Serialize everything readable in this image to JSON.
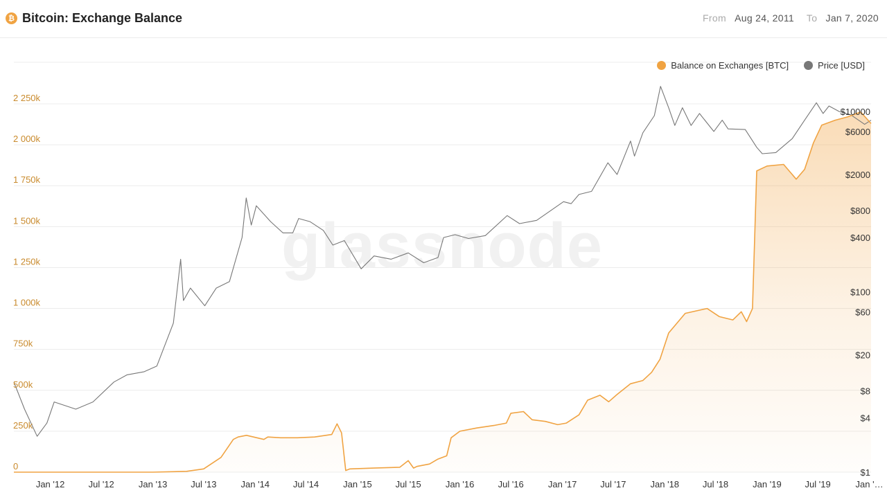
{
  "header": {
    "coin_icon": "bitcoin-icon",
    "coin_glyph": "₿",
    "title": "Bitcoin: Exchange Balance",
    "from_label": "From",
    "from_value": "Aug 24, 2011",
    "to_label": "To",
    "to_value": "Jan 7, 2020"
  },
  "watermark": "glassnode",
  "colors": {
    "balance": "#f0a342",
    "price": "#777777",
    "left_axis_text": "#c98a2c",
    "grid": "#ececec"
  },
  "chart_data": {
    "type": "area",
    "title": "Bitcoin: Exchange Balance",
    "x_range": [
      "2011-08-24",
      "2020-01-07"
    ],
    "x_tick_labels": [
      "Jan '12",
      "Jul '12",
      "Jan '13",
      "Jul '13",
      "Jan '14",
      "Jul '14",
      "Jan '15",
      "Jul '15",
      "Jan '16",
      "Jul '16",
      "Jan '17",
      "Jul '17",
      "Jan '18",
      "Jul '18",
      "Jan '19",
      "Jul '19",
      "Jan '…"
    ],
    "x_tick_dates": [
      "2012-01-01",
      "2012-07-01",
      "2013-01-01",
      "2013-07-01",
      "2014-01-01",
      "2014-07-01",
      "2015-01-01",
      "2015-07-01",
      "2016-01-01",
      "2016-07-01",
      "2017-01-01",
      "2017-07-01",
      "2018-01-01",
      "2018-07-01",
      "2019-01-01",
      "2019-07-01",
      "2020-01-01"
    ],
    "y_left": {
      "scale": "linear",
      "range": [
        0,
        2250000
      ],
      "ticks": [
        0,
        250000,
        500000,
        750000,
        1000000,
        1250000,
        1500000,
        1750000,
        2000000,
        2250000
      ],
      "tick_labels": [
        "0",
        "250k",
        "500k",
        "750k",
        "1 000k",
        "1 250k",
        "1 500k",
        "1 750k",
        "2 000k",
        "2 250k"
      ]
    },
    "y_right": {
      "scale": "log",
      "range": [
        1,
        10000
      ],
      "ticks": [
        1,
        4,
        8,
        20,
        60,
        100,
        400,
        800,
        2000,
        6000,
        10000
      ],
      "tick_labels": [
        "$1",
        "$4",
        "$8",
        "$20",
        "$60",
        "$100",
        "$400",
        "$800",
        "$2000",
        "$6000",
        "$10000"
      ]
    },
    "legend": {
      "placement": "top-right"
    },
    "grid": true,
    "series": [
      {
        "name": "Balance on Exchanges [BTC]",
        "axis": "left",
        "style": "area",
        "x": [
          "2011-08-24",
          "2012-01-01",
          "2012-07-01",
          "2013-01-01",
          "2013-05-01",
          "2013-07-01",
          "2013-09-01",
          "2013-10-15",
          "2013-11-01",
          "2013-12-01",
          "2014-02-01",
          "2014-02-15",
          "2014-04-01",
          "2014-06-01",
          "2014-08-01",
          "2014-10-01",
          "2014-10-20",
          "2014-11-05",
          "2014-11-20",
          "2014-12-05",
          "2015-03-01",
          "2015-06-01",
          "2015-07-01",
          "2015-07-20",
          "2015-08-01",
          "2015-09-15",
          "2015-10-15",
          "2015-11-15",
          "2015-12-01",
          "2016-01-01",
          "2016-03-01",
          "2016-05-01",
          "2016-06-15",
          "2016-07-01",
          "2016-08-15",
          "2016-09-15",
          "2016-11-01",
          "2016-12-15",
          "2017-01-15",
          "2017-03-01",
          "2017-04-01",
          "2017-05-15",
          "2017-06-15",
          "2017-07-15",
          "2017-09-01",
          "2017-10-15",
          "2017-11-15",
          "2017-12-15",
          "2018-01-15",
          "2018-03-15",
          "2018-06-01",
          "2018-07-15",
          "2018-09-01",
          "2018-10-01",
          "2018-10-20",
          "2018-11-10",
          "2018-11-25",
          "2019-01-01",
          "2019-03-01",
          "2019-04-15",
          "2019-05-15",
          "2019-06-15",
          "2019-07-15",
          "2019-09-01",
          "2019-10-15",
          "2019-12-01",
          "2020-01-07"
        ],
        "y": [
          0,
          0,
          0,
          0,
          5000,
          20000,
          90000,
          200000,
          215000,
          225000,
          200000,
          215000,
          210000,
          210000,
          215000,
          230000,
          295000,
          240000,
          10000,
          20000,
          25000,
          30000,
          70000,
          25000,
          35000,
          50000,
          80000,
          100000,
          210000,
          250000,
          270000,
          285000,
          300000,
          360000,
          370000,
          320000,
          310000,
          290000,
          300000,
          350000,
          440000,
          470000,
          430000,
          475000,
          540000,
          560000,
          610000,
          690000,
          850000,
          970000,
          1000000,
          950000,
          930000,
          980000,
          920000,
          1000000,
          1840000,
          1870000,
          1880000,
          1790000,
          1850000,
          2010000,
          2120000,
          2150000,
          2170000,
          2200000,
          2130000
        ]
      },
      {
        "name": "Price [USD]",
        "axis": "right",
        "style": "line",
        "x": [
          "2011-08-24",
          "2011-10-01",
          "2011-11-15",
          "2011-12-20",
          "2012-01-15",
          "2012-04-01",
          "2012-06-01",
          "2012-08-15",
          "2012-10-01",
          "2012-12-01",
          "2013-01-15",
          "2013-03-15",
          "2013-04-10",
          "2013-04-20",
          "2013-05-15",
          "2013-07-05",
          "2013-08-15",
          "2013-10-01",
          "2013-11-15",
          "2013-11-30",
          "2013-12-18",
          "2014-01-05",
          "2014-02-25",
          "2014-04-10",
          "2014-05-15",
          "2014-06-05",
          "2014-07-15",
          "2014-09-01",
          "2014-10-05",
          "2014-11-15",
          "2015-01-14",
          "2015-03-01",
          "2015-05-01",
          "2015-07-01",
          "2015-08-25",
          "2015-10-15",
          "2015-11-04",
          "2015-12-15",
          "2016-02-01",
          "2016-04-01",
          "2016-06-18",
          "2016-08-01",
          "2016-10-01",
          "2017-01-05",
          "2017-02-01",
          "2017-03-01",
          "2017-04-15",
          "2017-06-12",
          "2017-07-15",
          "2017-09-01",
          "2017-09-15",
          "2017-10-15",
          "2017-11-25",
          "2017-12-17",
          "2018-01-15",
          "2018-02-06",
          "2018-03-05",
          "2018-04-05",
          "2018-05-05",
          "2018-06-25",
          "2018-07-25",
          "2018-08-15",
          "2018-10-15",
          "2018-11-25",
          "2018-12-15",
          "2019-02-01",
          "2019-04-01",
          "2019-05-15",
          "2019-06-26",
          "2019-07-20",
          "2019-08-10",
          "2019-09-15",
          "2019-10-26",
          "2019-12-15",
          "2020-01-07"
        ],
        "y": [
          10,
          5,
          2.5,
          3.5,
          6,
          5,
          6,
          10,
          12,
          13,
          15,
          45,
          230,
          80,
          110,
          70,
          110,
          130,
          400,
          1100,
          550,
          900,
          600,
          450,
          450,
          650,
          600,
          480,
          330,
          370,
          180,
          250,
          230,
          270,
          210,
          240,
          400,
          430,
          390,
          420,
          700,
          570,
          620,
          1000,
          950,
          1200,
          1300,
          2700,
          2000,
          4700,
          3200,
          5800,
          9000,
          19000,
          11000,
          7000,
          11000,
          7000,
          9500,
          6000,
          8000,
          6400,
          6300,
          4000,
          3400,
          3500,
          5000,
          8000,
          12500,
          9500,
          11500,
          10000,
          9200,
          7200,
          8000
        ]
      }
    ]
  }
}
